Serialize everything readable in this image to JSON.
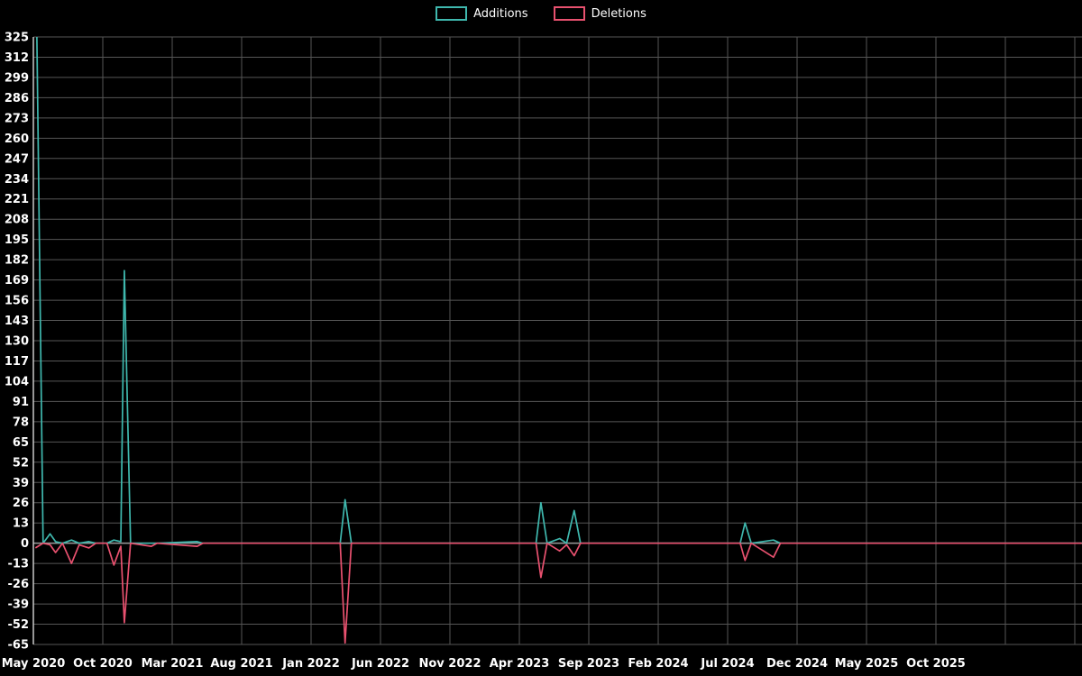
{
  "legend": {
    "items": [
      {
        "label": "Additions"
      },
      {
        "label": "Deletions"
      }
    ]
  },
  "chart_data": {
    "type": "line",
    "title": "",
    "xlabel": "",
    "ylabel": "",
    "legend_position": "top-center",
    "grid": true,
    "background": "#000000",
    "x_axis": {
      "start_month": "May 2020",
      "months_per_gridline": 5,
      "gridline_count": 16,
      "labels": [
        "May 2020",
        "Oct 2020",
        "Mar 2021",
        "Aug 2021",
        "Jan 2022",
        "Jun 2022",
        "Nov 2022",
        "Apr 2023",
        "Sep 2023",
        "Feb 2024",
        "Jul 2024",
        "Dec 2024",
        "May 2025",
        "Oct 2025"
      ]
    },
    "y_axis": {
      "min": -65,
      "max": 325,
      "tick_step": 13
    },
    "series": [
      {
        "name": "Additions",
        "color": "#3fb8ae"
      },
      {
        "name": "Deletions",
        "color": "#e8516f"
      }
    ],
    "points_format": [
      "month_offset_from_May_2020",
      "additions",
      "deletions"
    ],
    "points": [
      [
        0.15,
        400,
        -3
      ],
      [
        0.7,
        0,
        0
      ],
      [
        1.2,
        6,
        -1
      ],
      [
        1.6,
        1,
        -6
      ],
      [
        2.1,
        0,
        0
      ],
      [
        2.75,
        2,
        -13
      ],
      [
        3.3,
        0,
        -1
      ],
      [
        4.0,
        1,
        -3
      ],
      [
        4.5,
        0,
        0
      ],
      [
        5.3,
        0,
        0
      ],
      [
        5.8,
        2,
        -14
      ],
      [
        6.3,
        1,
        -2
      ],
      [
        6.55,
        175,
        -51
      ],
      [
        7.0,
        0,
        0
      ],
      [
        8.5,
        0,
        -2
      ],
      [
        8.9,
        0,
        0
      ],
      [
        11.8,
        1,
        -2
      ],
      [
        12.2,
        0,
        0
      ],
      [
        22.1,
        0,
        0
      ],
      [
        22.45,
        28,
        -64
      ],
      [
        22.9,
        0,
        0
      ],
      [
        36.2,
        0,
        0
      ],
      [
        36.55,
        26,
        -22
      ],
      [
        37.0,
        0,
        0
      ],
      [
        37.9,
        3,
        -5
      ],
      [
        38.4,
        0,
        -1
      ],
      [
        38.95,
        21,
        -8
      ],
      [
        39.4,
        0,
        0
      ],
      [
        50.9,
        0,
        0
      ],
      [
        51.25,
        13,
        -11
      ],
      [
        51.7,
        0,
        0
      ],
      [
        53.3,
        2,
        -9
      ],
      [
        53.8,
        0,
        0
      ],
      [
        75.5,
        0,
        0
      ]
    ],
    "notes": "First Additions spike at far left exceeds the visible axis maximum (clipped at top of plot).",
    "colors": {
      "grid": "#565656",
      "zero_line": "#9a9a9a",
      "axis": "#c8c8c8",
      "tick_text": "#ffffff"
    }
  }
}
